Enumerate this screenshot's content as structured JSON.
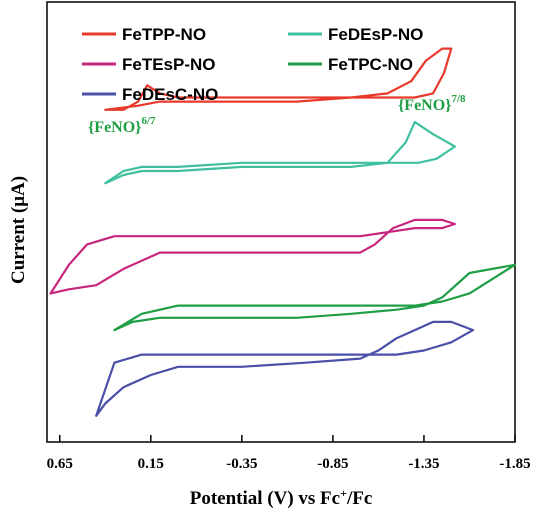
{
  "chart_data": {
    "type": "line",
    "title": "",
    "xlabel": "Potential (V) vs Fc",
    "xlabel_sup": "+",
    "xlabel_suffix": "/Fc",
    "ylabel": "Current  (μA)",
    "x_reversed": true,
    "xlim": [
      0.72,
      -1.85
    ],
    "ylim": [
      0,
      1
    ],
    "xticks": [
      0.65,
      0.15,
      -0.35,
      -0.85,
      -1.35,
      -1.85
    ],
    "xtick_labels": [
      "0.65",
      "0.15",
      "-0.35",
      "-0.85",
      "-1.35",
      "-1.85"
    ],
    "grid": false,
    "legend_position": "top",
    "series": [
      {
        "name": "FeTPP-NO",
        "color": "#e8392b",
        "x": [
          0.4,
          0.22,
          0.1,
          -0.1,
          -0.35,
          -0.65,
          -0.95,
          -1.15,
          -1.28,
          -1.36,
          -1.45,
          -1.5,
          -1.46,
          -1.4,
          -1.3,
          -1.15,
          -0.8,
          -0.35,
          0.0,
          0.1,
          0.17,
          0.22,
          0.3,
          0.4
        ],
        "y": [
          0.78,
          0.79,
          0.8,
          0.8,
          0.8,
          0.8,
          0.81,
          0.82,
          0.85,
          0.9,
          0.93,
          0.93,
          0.87,
          0.82,
          0.81,
          0.81,
          0.81,
          0.81,
          0.81,
          0.82,
          0.84,
          0.8,
          0.78,
          0.78
        ]
      },
      {
        "name": "FeDEsP-NO",
        "color": "#3fbfa0",
        "x": [
          0.4,
          0.3,
          0.2,
          0.0,
          -0.35,
          -0.65,
          -0.95,
          -1.15,
          -1.25,
          -1.3,
          -1.4,
          -1.52,
          -1.42,
          -1.32,
          -1.2,
          -0.9,
          -0.35,
          0.0,
          0.2,
          0.3,
          0.4
        ],
        "y": [
          0.6,
          0.62,
          0.63,
          0.63,
          0.64,
          0.64,
          0.64,
          0.65,
          0.7,
          0.75,
          0.72,
          0.69,
          0.66,
          0.65,
          0.65,
          0.65,
          0.65,
          0.64,
          0.64,
          0.63,
          0.6
        ]
      },
      {
        "name": "FeTEsP-NO",
        "color": "#c7267c",
        "x": [
          0.7,
          0.6,
          0.45,
          0.3,
          0.1,
          -0.1,
          -0.35,
          -0.7,
          -1.0,
          -1.08,
          -1.18,
          -1.3,
          -1.45,
          -1.52,
          -1.45,
          -1.3,
          -1.15,
          -1.0,
          -0.7,
          -0.35,
          0.0,
          0.2,
          0.35,
          0.5,
          0.6,
          0.7
        ],
        "y": [
          0.33,
          0.34,
          0.35,
          0.39,
          0.43,
          0.43,
          0.43,
          0.43,
          0.43,
          0.45,
          0.49,
          0.51,
          0.51,
          0.5,
          0.49,
          0.49,
          0.48,
          0.47,
          0.47,
          0.47,
          0.47,
          0.47,
          0.47,
          0.45,
          0.4,
          0.33
        ]
      },
      {
        "name": "FeTPC-NO",
        "color": "#1f9e45",
        "x": [
          0.35,
          0.25,
          0.1,
          -0.1,
          -0.35,
          -0.65,
          -0.95,
          -1.2,
          -1.35,
          -1.45,
          -1.6,
          -1.85,
          -1.6,
          -1.45,
          -1.3,
          -1.0,
          -0.5,
          0.0,
          0.2,
          0.35
        ],
        "y": [
          0.24,
          0.26,
          0.27,
          0.27,
          0.27,
          0.27,
          0.28,
          0.29,
          0.3,
          0.32,
          0.38,
          0.4,
          0.33,
          0.31,
          0.3,
          0.3,
          0.3,
          0.3,
          0.28,
          0.24
        ]
      },
      {
        "name": "FeDEsC-NO",
        "color": "#4a4fa8",
        "x": [
          0.45,
          0.4,
          0.3,
          0.15,
          0.0,
          -0.35,
          -0.7,
          -1.0,
          -1.1,
          -1.2,
          -1.3,
          -1.4,
          -1.5,
          -1.62,
          -1.5,
          -1.35,
          -1.2,
          -0.95,
          -0.4,
          0.0,
          0.2,
          0.35,
          0.45
        ],
        "y": [
          0.03,
          0.06,
          0.1,
          0.13,
          0.15,
          0.15,
          0.16,
          0.17,
          0.19,
          0.22,
          0.24,
          0.26,
          0.26,
          0.24,
          0.21,
          0.19,
          0.18,
          0.18,
          0.18,
          0.18,
          0.18,
          0.16,
          0.03
        ]
      }
    ],
    "annotations": [
      {
        "text": "{FeNO}",
        "sup": "6/7",
        "color": "#1f9e45"
      },
      {
        "text": "{FeNO}",
        "sup": "7/8",
        "color": "#1f9e45"
      }
    ]
  }
}
